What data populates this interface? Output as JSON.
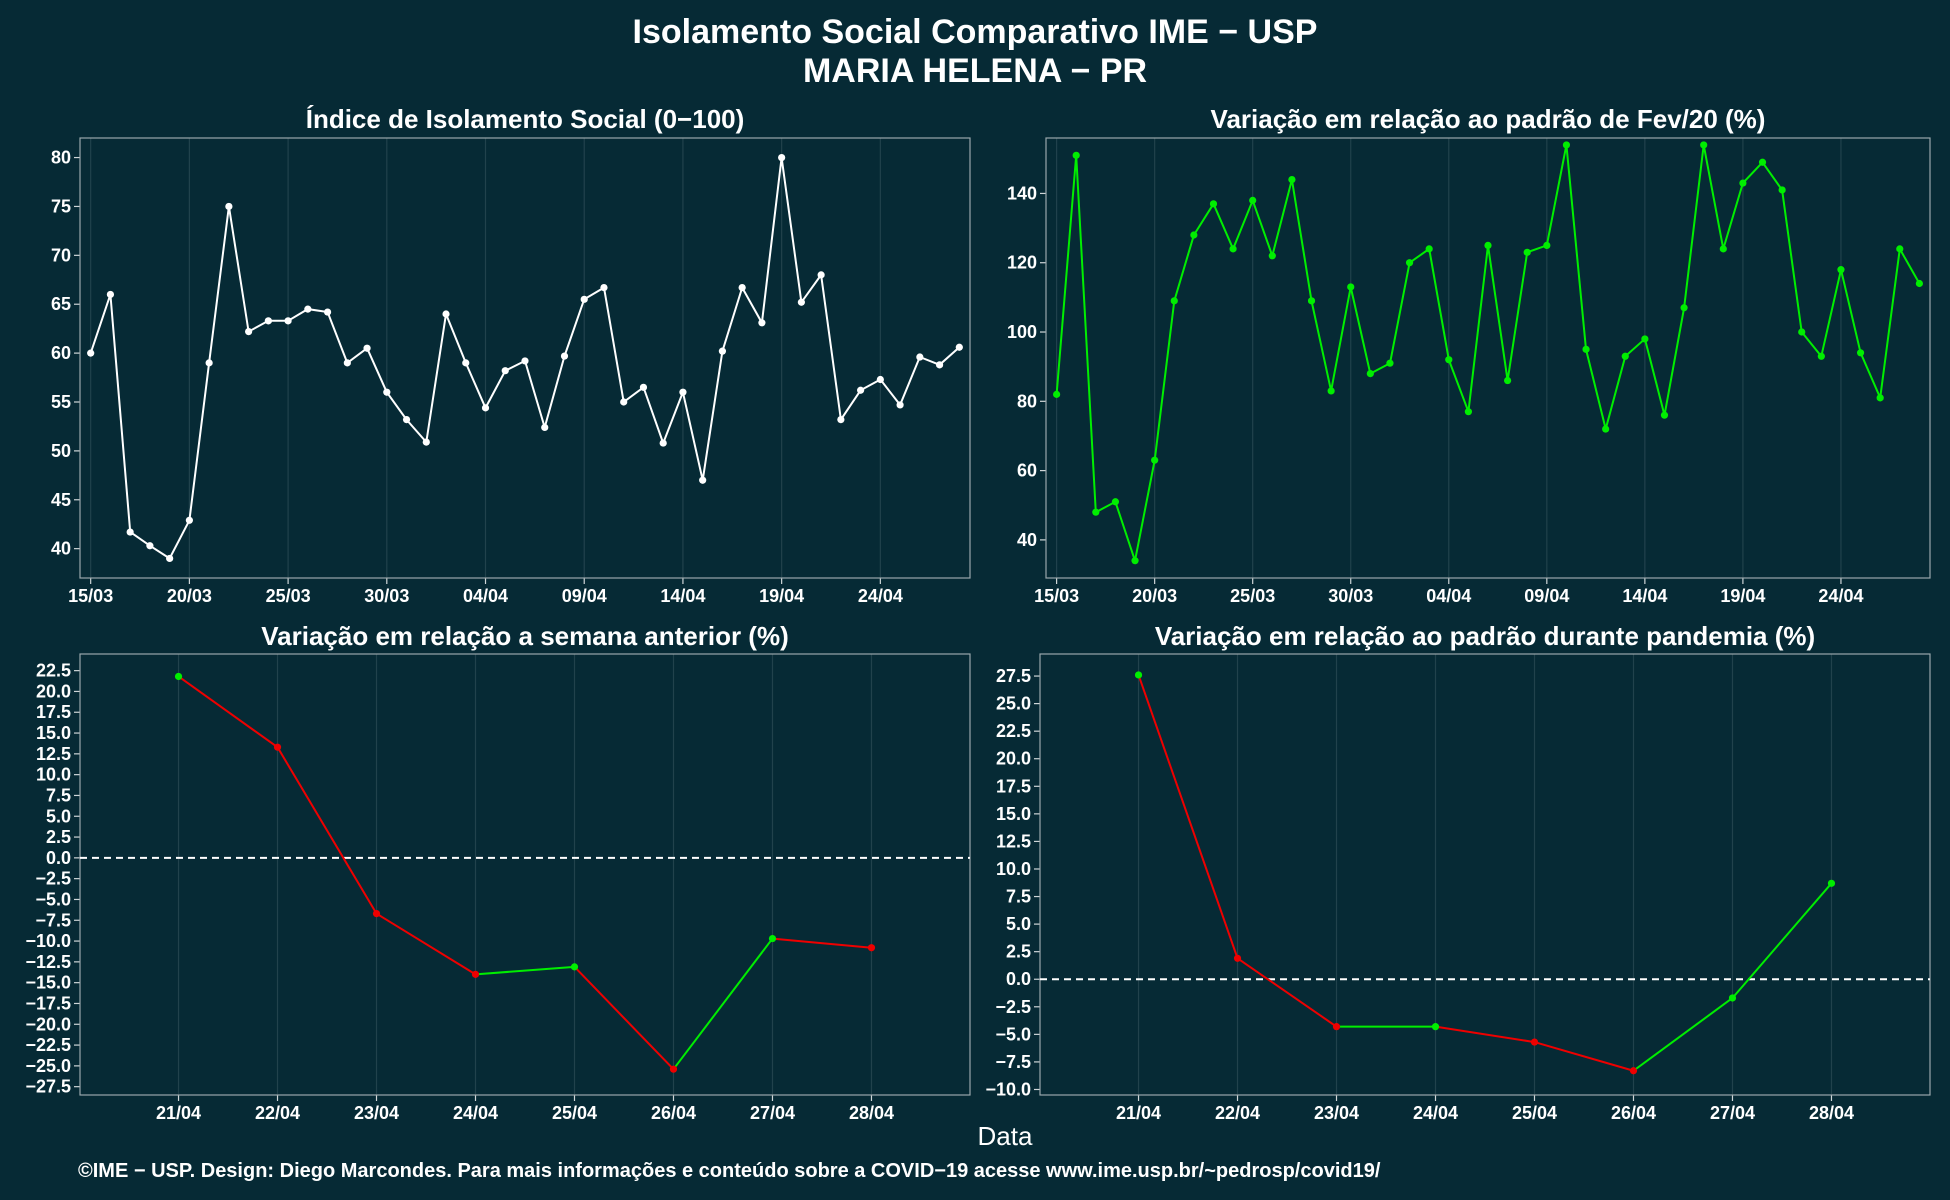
{
  "title": "Isolamento Social Comparativo IME − USP",
  "subtitle": "MARIA HELENA − PR",
  "xlabel": "Data",
  "footer": "©IME − USP. Design: Diego Marcondes. Para mais informações e conteúdo sobre a COVID−19 acesse www.ime.usp.br/~pedrosp/covid19/",
  "colors": {
    "background": "#062a35",
    "white_series": "#ffffff",
    "positive": "#00ee00",
    "negative": "#ee0000",
    "grid": "#21424c"
  },
  "chart_data": [
    {
      "type": "line",
      "title": "Índice de Isolamento Social (0−100)",
      "x": [
        "15/03",
        "16/03",
        "17/03",
        "18/03",
        "19/03",
        "20/03",
        "21/03",
        "22/03",
        "23/03",
        "24/03",
        "25/03",
        "26/03",
        "27/03",
        "28/03",
        "29/03",
        "30/03",
        "31/03",
        "01/04",
        "02/04",
        "03/04",
        "04/04",
        "05/04",
        "06/04",
        "07/04",
        "08/04",
        "09/04",
        "10/04",
        "11/04",
        "12/04",
        "13/04",
        "14/04",
        "15/04",
        "16/04",
        "17/04",
        "18/04",
        "19/04",
        "20/04",
        "21/04",
        "22/04",
        "23/04",
        "24/04",
        "25/04",
        "26/04",
        "27/04",
        "28/04"
      ],
      "values": [
        60.0,
        66.0,
        41.7,
        40.3,
        39.0,
        42.9,
        59.0,
        75.0,
        62.2,
        63.3,
        63.3,
        64.5,
        64.2,
        59.0,
        60.5,
        56.0,
        53.2,
        50.9,
        64.0,
        59.0,
        54.4,
        58.2,
        59.2,
        52.4,
        59.7,
        65.5,
        66.7,
        55.0,
        56.5,
        50.8,
        56.0,
        47.0,
        60.2,
        66.7,
        63.1,
        80.0,
        65.2,
        68.0,
        53.2,
        56.2,
        57.3,
        54.7,
        59.6,
        58.8,
        60.6
      ],
      "ylim": [
        37,
        82
      ],
      "yticks": [
        40,
        45,
        50,
        55,
        60,
        65,
        70,
        75,
        80
      ],
      "xticks": [
        "15/03",
        "20/03",
        "25/03",
        "30/03",
        "04/04",
        "09/04",
        "14/04",
        "19/04",
        "24/04"
      ],
      "color": "#ffffff"
    },
    {
      "type": "line",
      "title": "Variação em relação ao padrão de Fev/20 (%)",
      "x": [
        "15/03",
        "16/03",
        "17/03",
        "18/03",
        "19/03",
        "20/03",
        "21/03",
        "22/03",
        "23/03",
        "24/03",
        "25/03",
        "26/03",
        "27/03",
        "28/03",
        "29/03",
        "30/03",
        "31/03",
        "01/04",
        "02/04",
        "03/04",
        "04/04",
        "05/04",
        "06/04",
        "07/04",
        "08/04",
        "09/04",
        "10/04",
        "11/04",
        "12/04",
        "13/04",
        "14/04",
        "15/04",
        "16/04",
        "17/04",
        "18/04",
        "19/04",
        "20/04",
        "21/04",
        "22/04",
        "23/04",
        "24/04",
        "25/04",
        "26/04",
        "27/04",
        "28/04"
      ],
      "values": [
        82,
        151,
        48,
        51,
        34,
        63,
        109,
        128,
        137,
        124,
        138,
        122,
        144,
        109,
        83,
        113,
        88,
        91,
        120,
        124,
        92,
        77,
        125,
        86,
        123,
        125,
        154,
        95,
        72,
        93,
        98,
        76,
        107,
        154,
        124,
        143,
        149,
        141,
        100,
        93,
        118,
        94,
        81,
        124,
        114
      ],
      "ylim": [
        29,
        156
      ],
      "yticks": [
        40,
        60,
        80,
        100,
        120,
        140
      ],
      "xticks": [
        "15/03",
        "20/03",
        "25/03",
        "30/03",
        "04/04",
        "09/04",
        "14/04",
        "19/04",
        "24/04"
      ],
      "color": "#00ee00"
    },
    {
      "type": "line",
      "title": "Variação em relação a semana anterior (%)",
      "x": [
        "21/04",
        "22/04",
        "23/04",
        "24/04",
        "25/04",
        "26/04",
        "27/04",
        "28/04"
      ],
      "values": [
        21.8,
        13.3,
        -6.7,
        -14.0,
        -13.1,
        -25.4,
        -9.7,
        -10.8
      ],
      "ylim": [
        -28.5,
        24.5
      ],
      "yticks": [
        -27.5,
        -25,
        -22.5,
        -20,
        -17.5,
        -15,
        -12.5,
        -10,
        -7.5,
        -5,
        -2.5,
        0,
        2.5,
        5,
        7.5,
        10,
        12.5,
        15,
        17.5,
        20,
        22.5
      ],
      "ytick_labels": [
        "−27.5",
        "−25.0",
        "−22.5",
        "−20.0",
        "−17.5",
        "−15.0",
        "−12.5",
        "−10.0",
        "−7.5",
        "−5.0",
        "−2.5",
        "0.0",
        "2.5",
        "5.0",
        "7.5",
        "10.0",
        "12.5",
        "15.0",
        "17.5",
        "20.0",
        "22.5"
      ],
      "xticks": [
        "21/04",
        "22/04",
        "23/04",
        "24/04",
        "25/04",
        "26/04",
        "27/04",
        "28/04"
      ],
      "reference_line": 0,
      "colors": {
        "positive": "#00ee00",
        "negative": "#ee0000"
      }
    },
    {
      "type": "line",
      "title": "Variação em relação ao padrão durante pandemia (%)",
      "x": [
        "21/04",
        "22/04",
        "23/04",
        "24/04",
        "25/04",
        "26/04",
        "27/04",
        "28/04"
      ],
      "values": [
        27.6,
        1.9,
        -4.3,
        -4.3,
        -5.7,
        -8.3,
        -1.7,
        8.7
      ],
      "ylim": [
        -10.5,
        29.5
      ],
      "yticks": [
        -10,
        -7.5,
        -5,
        -2.5,
        0,
        2.5,
        5,
        7.5,
        10,
        12.5,
        15,
        17.5,
        20,
        22.5,
        25,
        27.5
      ],
      "ytick_labels": [
        "−10.0",
        "−7.5",
        "−5.0",
        "−2.5",
        "0.0",
        "2.5",
        "5.0",
        "7.5",
        "10.0",
        "12.5",
        "15.0",
        "17.5",
        "20.0",
        "22.5",
        "25.0",
        "27.5"
      ],
      "xticks": [
        "21/04",
        "22/04",
        "23/04",
        "24/04",
        "25/04",
        "26/04",
        "27/04",
        "28/04"
      ],
      "reference_line": 0,
      "colors": {
        "positive": "#00ee00",
        "negative": "#ee0000"
      }
    }
  ]
}
